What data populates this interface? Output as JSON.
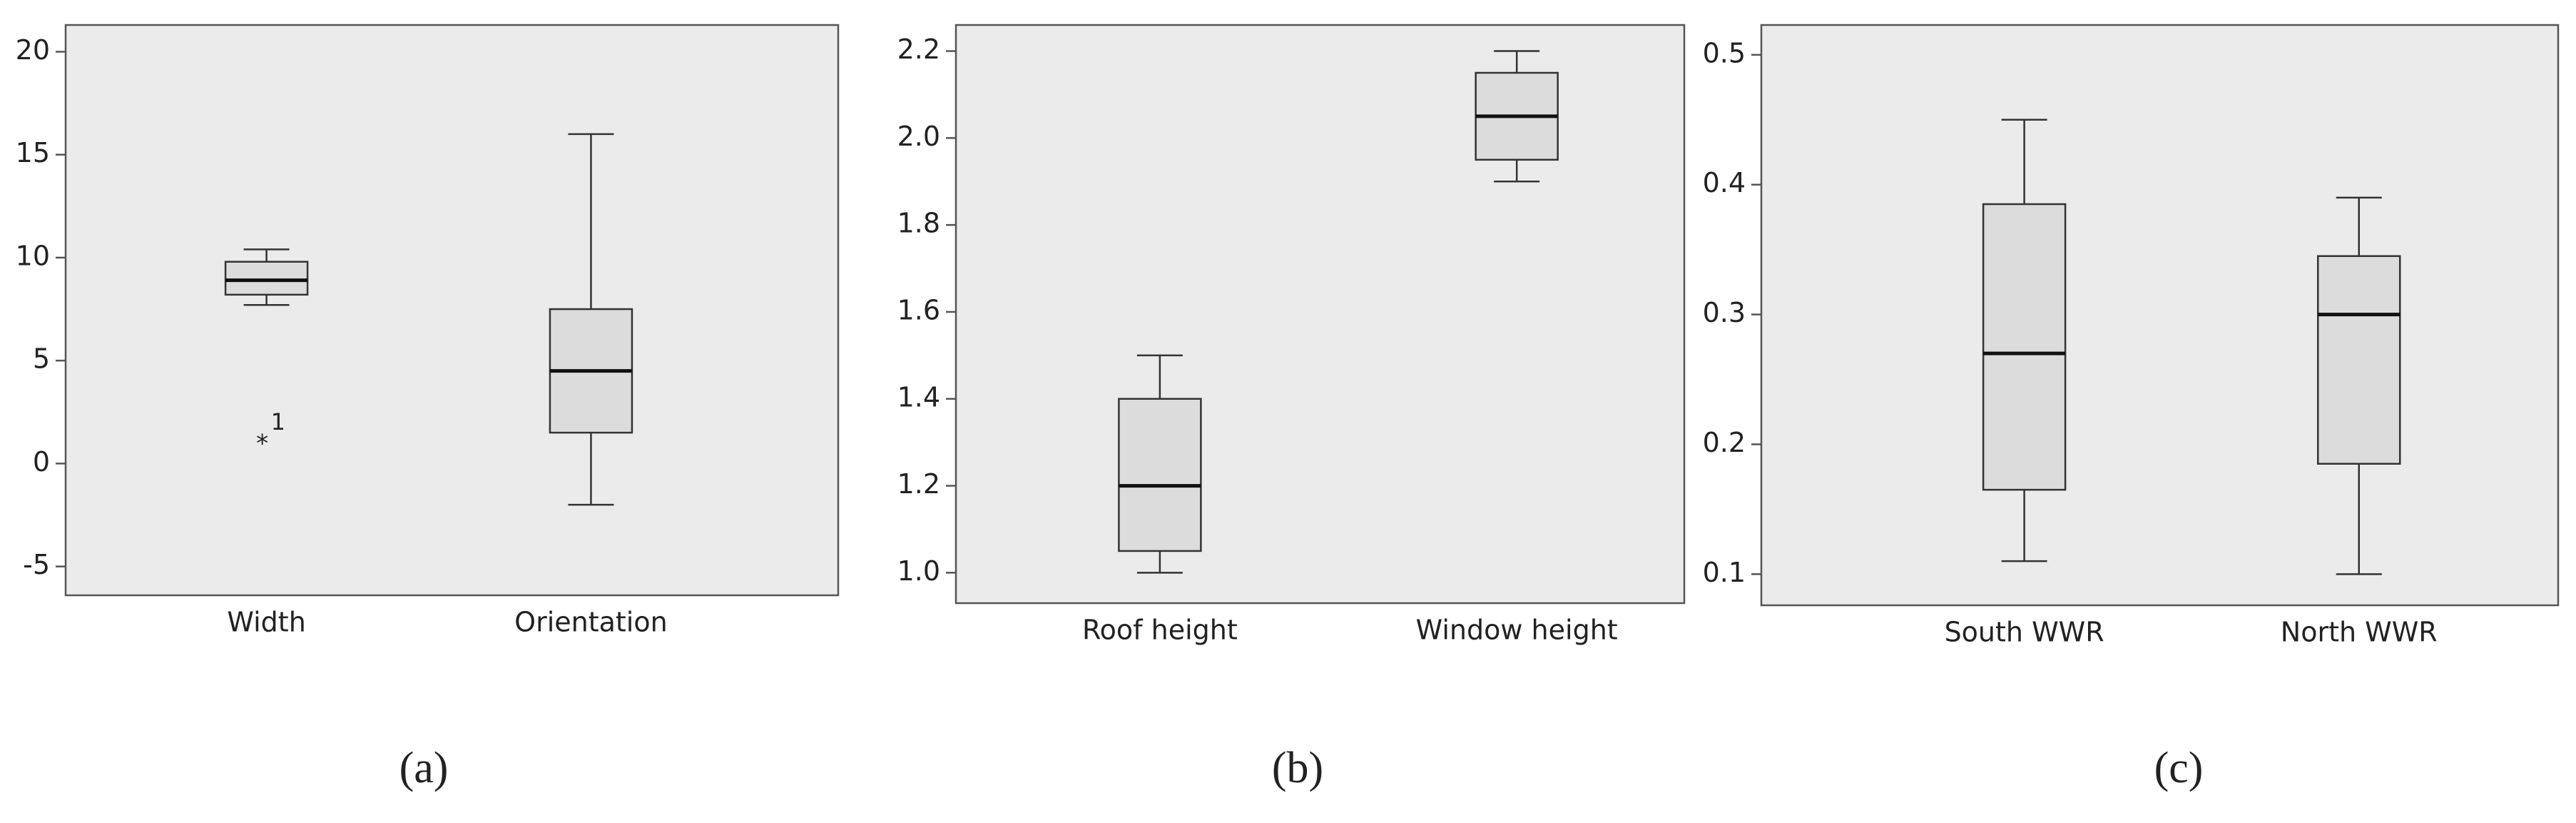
{
  "chart_data": [
    {
      "type": "box",
      "panel_label": "(a)",
      "categories": [
        "Width",
        "Orientation"
      ],
      "min": [
        7.7,
        -2
      ],
      "q1": [
        8.2,
        1.5
      ],
      "median": [
        8.9,
        4.5
      ],
      "q3": [
        9.8,
        7.5
      ],
      "max": [
        10.4,
        16
      ],
      "outliers": [
        {
          "x": "Width",
          "value": 1.2,
          "label": "1"
        }
      ],
      "ylim": [
        -6.4,
        21.3
      ],
      "yticks": [
        -5,
        0,
        5,
        10,
        15,
        20
      ],
      "color": "#dcdcdc",
      "background": "#ebebeb"
    },
    {
      "type": "box",
      "panel_label": "(b)",
      "categories": [
        "Roof height",
        "Window height"
      ],
      "min": [
        1.0,
        1.9
      ],
      "q1": [
        1.05,
        1.95
      ],
      "median": [
        1.2,
        2.05
      ],
      "q3": [
        1.4,
        2.15
      ],
      "max": [
        1.5,
        2.2
      ],
      "ylim": [
        0.93,
        2.26
      ],
      "yticks": [
        {
          "value": 1,
          "label": "1.0"
        },
        1.2,
        1.4,
        1.6,
        1.8,
        {
          "value": 2,
          "label": "2.0"
        },
        2.2
      ],
      "color": "#dcdcdc",
      "background": "#ebebeb"
    },
    {
      "type": "box",
      "panel_label": "(c)",
      "categories": [
        "South WWR",
        "North WWR"
      ],
      "min": [
        0.11,
        0.1
      ],
      "q1": [
        0.165,
        0.185
      ],
      "median": [
        0.27,
        0.3
      ],
      "q3": [
        0.385,
        0.345
      ],
      "max": [
        0.45,
        0.39
      ],
      "ylim": [
        0.076,
        0.523
      ],
      "yticks": [
        0.1,
        0.2,
        0.3,
        0.4,
        0.5
      ],
      "color": "#dcdcdc",
      "background": "#ebebeb"
    }
  ]
}
